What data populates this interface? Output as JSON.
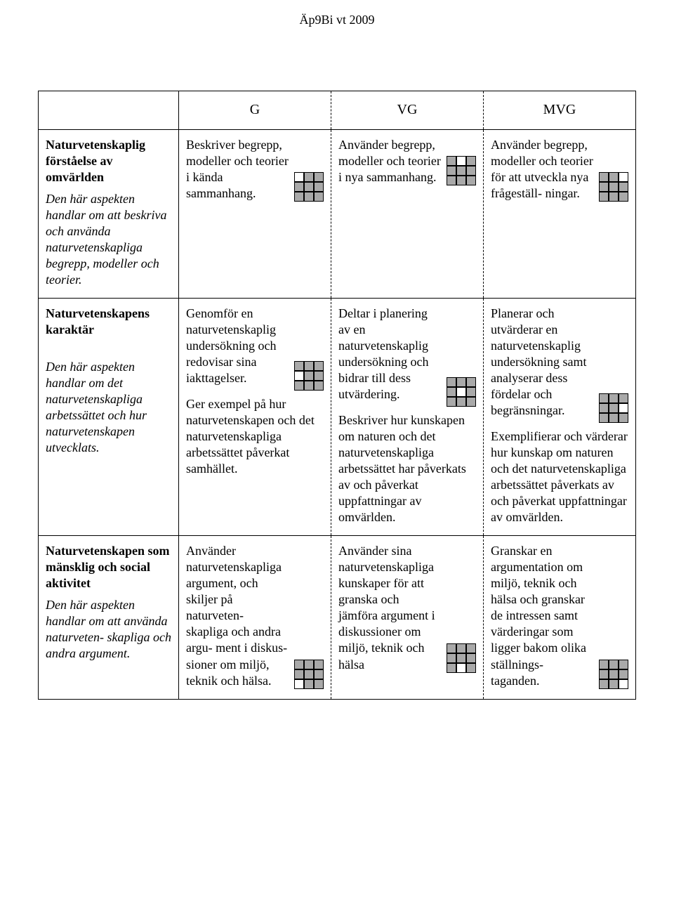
{
  "doc_header": "Äp9Bi vt 2009",
  "columns": {
    "left": "",
    "g": "G",
    "vg": "VG",
    "mvg": "MVG"
  },
  "rows": [
    {
      "left_title": "Naturvetenskaplig förståelse av omvärlden",
      "left_sub": "Den här aspekten handlar om att beskriva och använda naturvetenskapliga begrepp, modeller och teorier.",
      "g": [
        {
          "text": "Beskriver begrepp, modeller och teorier i kända sammanhang.",
          "grid": "011111111"
        }
      ],
      "vg": [
        {
          "text": "Använder begrepp, modeller och teorier i nya sammanhang.",
          "grid": "101111111"
        }
      ],
      "mvg": [
        {
          "text": "Använder begrepp, modeller och teorier för att utveckla nya frågeställ- ningar.",
          "grid": "110111111"
        }
      ]
    },
    {
      "left_title": "Naturvetenskapens karaktär",
      "left_sub": "Den här aspekten handlar om det naturvetenskapliga arbetssättet och hur naturvetenskapen utvecklats.",
      "g": [
        {
          "text": "Genomför en naturvetenskaplig undersökning och redovisar sina iakttagelser.",
          "grid": "111011111"
        },
        {
          "text": "Ger exempel på hur naturvetenskapen och det naturvetenskapliga arbetssättet påverkat samhället.",
          "grid": null
        }
      ],
      "vg": [
        {
          "text": "Deltar i planering av en naturvetenskaplig undersökning och bidrar till dess utvärdering.",
          "grid": "111101111"
        },
        {
          "text": "Beskriver hur kunskapen om naturen och det naturvetenskapliga arbetssättet har påverkats av och påverkat uppfattningar av omvärlden.",
          "grid": null
        }
      ],
      "mvg": [
        {
          "text": "Planerar och utvärderar en naturvetenskaplig undersökning samt analyserar dess fördelar och begränsningar.",
          "grid": "111110111"
        },
        {
          "text": "Exemplifierar och värderar hur kunskap om naturen och det naturvetenskapliga arbetssättet påverkats av och påverkat uppfattningar av omvärlden.",
          "grid": null
        }
      ]
    },
    {
      "left_title": "Naturvetenskapen som mänsklig och social aktivitet",
      "left_sub": "Den här aspekten handlar om att använda naturveten- skapliga och andra argument.",
      "g": [
        {
          "text": "Använder naturvetenskapliga argument, och skiljer på naturveten- skapliga och andra argu- ment i diskus- sioner om miljö, teknik och hälsa.",
          "grid": "111111011"
        }
      ],
      "vg": [
        {
          "text": "Använder sina naturvetenskapliga kunskaper för att granska och jämföra argument i diskussioner om miljö, teknik och hälsa",
          "grid": "111111101"
        }
      ],
      "mvg": [
        {
          "text": "Granskar en argumentation om miljö, teknik och hälsa och granskar de intressen samt värderingar som ligger bakom olika ställnings- taganden.",
          "grid": "111111110"
        }
      ]
    }
  ],
  "colors": {
    "fill": "#a9a9a9",
    "empty": "#ffffff",
    "border": "#000000",
    "bg": "#ffffff",
    "text": "#000000"
  }
}
